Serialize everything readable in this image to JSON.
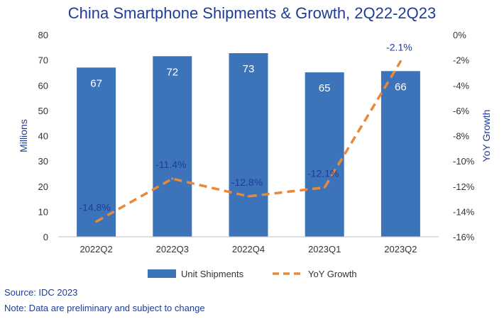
{
  "chart_data": {
    "type": "bar",
    "title": "China Smartphone Shipments & Growth, 2Q22-2Q23",
    "categories": [
      "2022Q2",
      "2022Q3",
      "2022Q4",
      "2023Q1",
      "2023Q2"
    ],
    "series": [
      {
        "name": "Unit Shipments",
        "type": "bar",
        "axis": "left",
        "values": [
          67,
          71.5,
          72.7,
          65.1,
          65.6
        ],
        "labels": [
          "67",
          "72",
          "73",
          "65",
          "66"
        ],
        "color": "#3d73b9"
      },
      {
        "name": "YoY Growth",
        "type": "line",
        "axis": "right",
        "style": "dashed",
        "values": [
          -14.8,
          -11.4,
          -12.8,
          -12.1,
          -2.1
        ],
        "labels": [
          "-14.8%",
          "-11.4%",
          "-12.8%",
          "-12.1%",
          "-2.1%"
        ],
        "color": "#e8893a"
      }
    ],
    "ylabel": "Millions",
    "y2label": "YoY Growth",
    "ylim": [
      0,
      80
    ],
    "y2lim": [
      -16,
      0
    ],
    "yticks": [
      "0",
      "10",
      "20",
      "30",
      "40",
      "50",
      "60",
      "70",
      "80"
    ],
    "y2ticks": [
      "-16%",
      "-14%",
      "-12%",
      "-10%",
      "-8%",
      "-6%",
      "-4%",
      "-2%",
      "0%"
    ],
    "legend": "bottom",
    "grid": false
  },
  "footer": {
    "source": "Source: IDC 2023",
    "note": "Note: Data are preliminary and subject to change"
  }
}
